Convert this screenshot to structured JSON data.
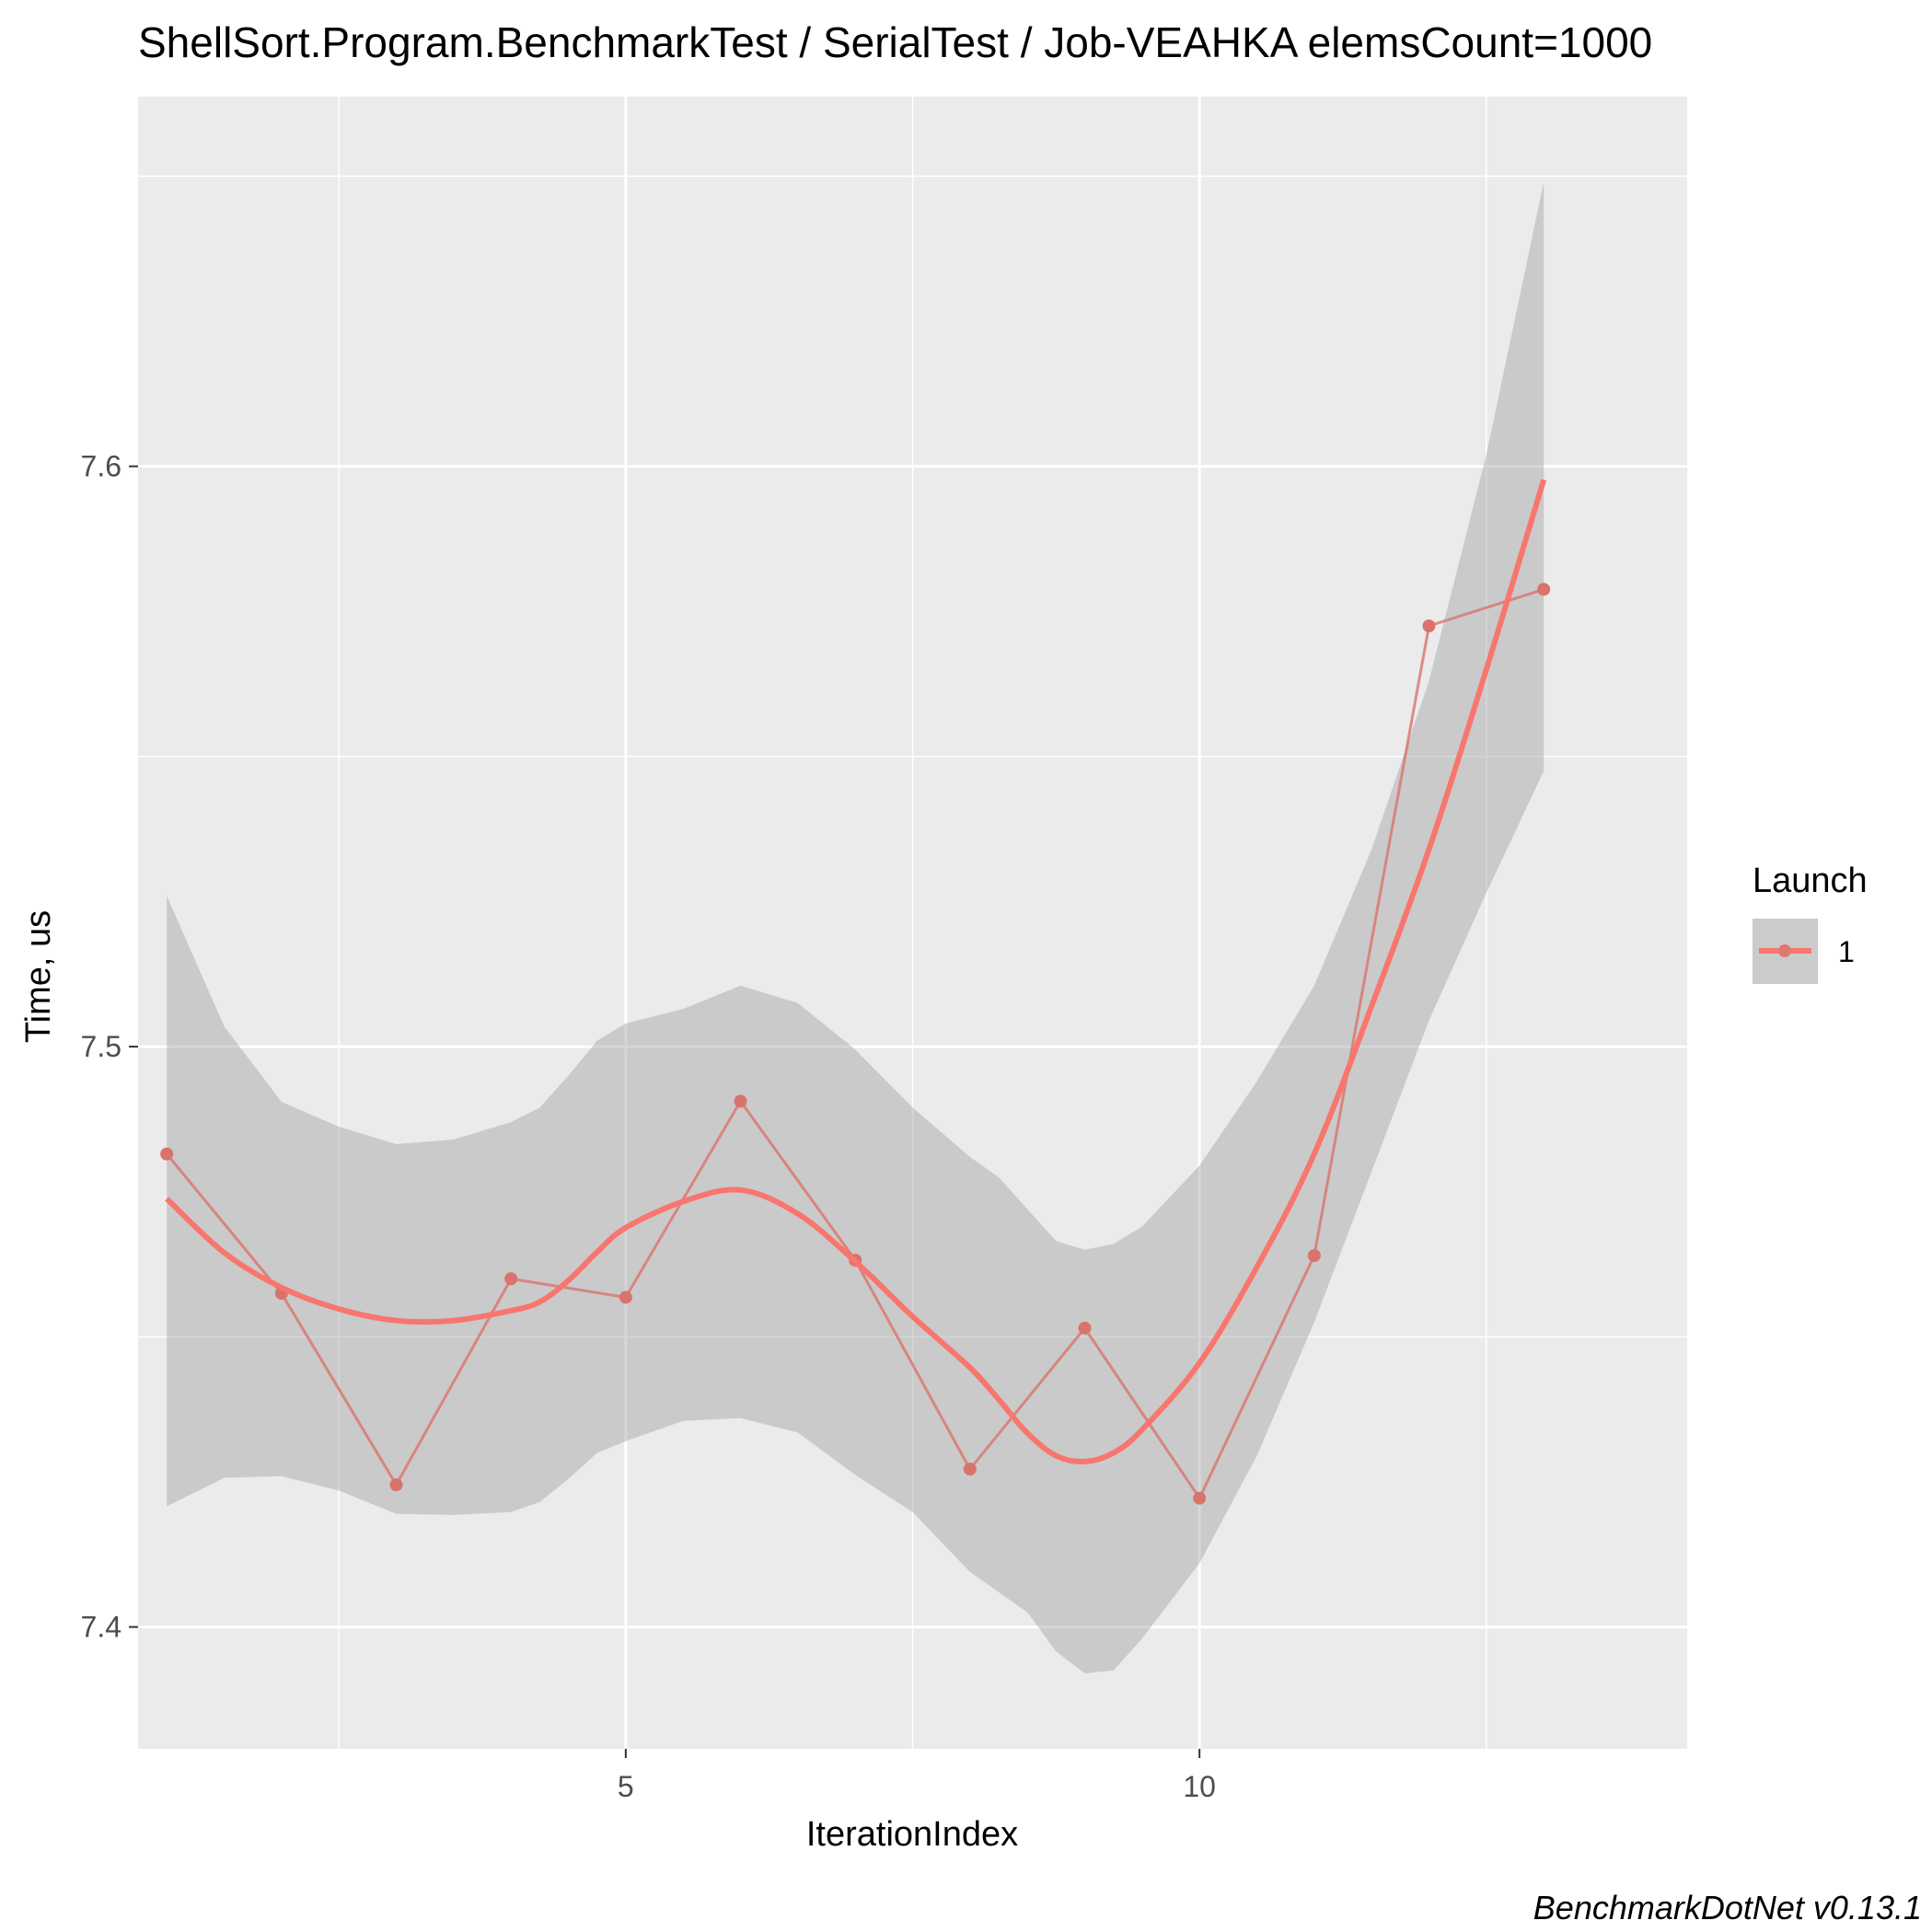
{
  "chart_data": {
    "type": "line",
    "title": "ShellSort.Program.BenchmarkTest / SerialTest / Job-VEAHKA elemsCount=1000",
    "xlabel": "IterationIndex",
    "ylabel": "Time, us",
    "xlim": [
      0.75,
      14.25
    ],
    "ylim": [
      7.379,
      7.6637
    ],
    "x_ticks": [
      5,
      10
    ],
    "y_ticks": [
      7.4,
      7.5,
      7.6
    ],
    "grid": true,
    "legend": {
      "title": "Launch",
      "position": "right",
      "entries": [
        "1"
      ]
    },
    "series": [
      {
        "name": "1",
        "color": "#F8766D",
        "x": [
          1,
          2,
          3,
          4,
          5,
          6,
          7,
          8,
          9,
          10,
          11,
          12,
          13
        ],
        "y": [
          7.4815,
          7.4575,
          7.4245,
          7.46,
          7.4568,
          7.4906,
          7.4632,
          7.4272,
          7.4515,
          7.4222,
          7.464,
          7.5725,
          7.5788
        ]
      }
    ],
    "smooth": {
      "color": "#F8766D",
      "band_color": "#999999",
      "x": [
        1,
        1.5,
        2,
        2.5,
        3,
        3.5,
        4,
        4.25,
        4.5,
        4.75,
        5,
        5.5,
        6,
        6.5,
        7,
        7.5,
        8,
        8.25,
        8.5,
        8.75,
        9,
        9.25,
        9.5,
        10,
        10.5,
        11,
        11.5,
        12,
        12.5,
        13
      ],
      "y": [
        7.4738,
        7.4645,
        7.4585,
        7.4548,
        7.4528,
        7.4528,
        7.4545,
        7.456,
        7.4597,
        7.4646,
        7.4688,
        7.4733,
        7.4753,
        7.4712,
        7.463,
        7.4535,
        7.4447,
        7.4392,
        7.4334,
        7.4295,
        7.4285,
        7.43,
        7.434,
        7.4455,
        7.462,
        7.4815,
        7.507,
        7.534,
        7.565,
        7.5977
      ],
      "ymin": [
        7.4208,
        7.4257,
        7.426,
        7.4235,
        7.4195,
        7.4193,
        7.4198,
        7.4215,
        7.4255,
        7.43,
        7.432,
        7.4355,
        7.436,
        7.4335,
        7.4262,
        7.4198,
        7.4095,
        7.406,
        7.4025,
        7.3958,
        7.392,
        7.3925,
        7.398,
        7.411,
        7.4295,
        7.4525,
        7.4785,
        7.5045,
        7.5265,
        7.5475
      ],
      "ymax": [
        7.526,
        7.5035,
        7.4905,
        7.4862,
        7.4832,
        7.484,
        7.487,
        7.4895,
        7.495,
        7.501,
        7.504,
        7.5065,
        7.5105,
        7.5075,
        7.4995,
        7.4895,
        7.481,
        7.4775,
        7.472,
        7.4665,
        7.465,
        7.466,
        7.469,
        7.4795,
        7.494,
        7.5105,
        7.534,
        7.563,
        7.602,
        7.649
      ]
    },
    "caption": "BenchmarkDotNet v0.13.1"
  }
}
